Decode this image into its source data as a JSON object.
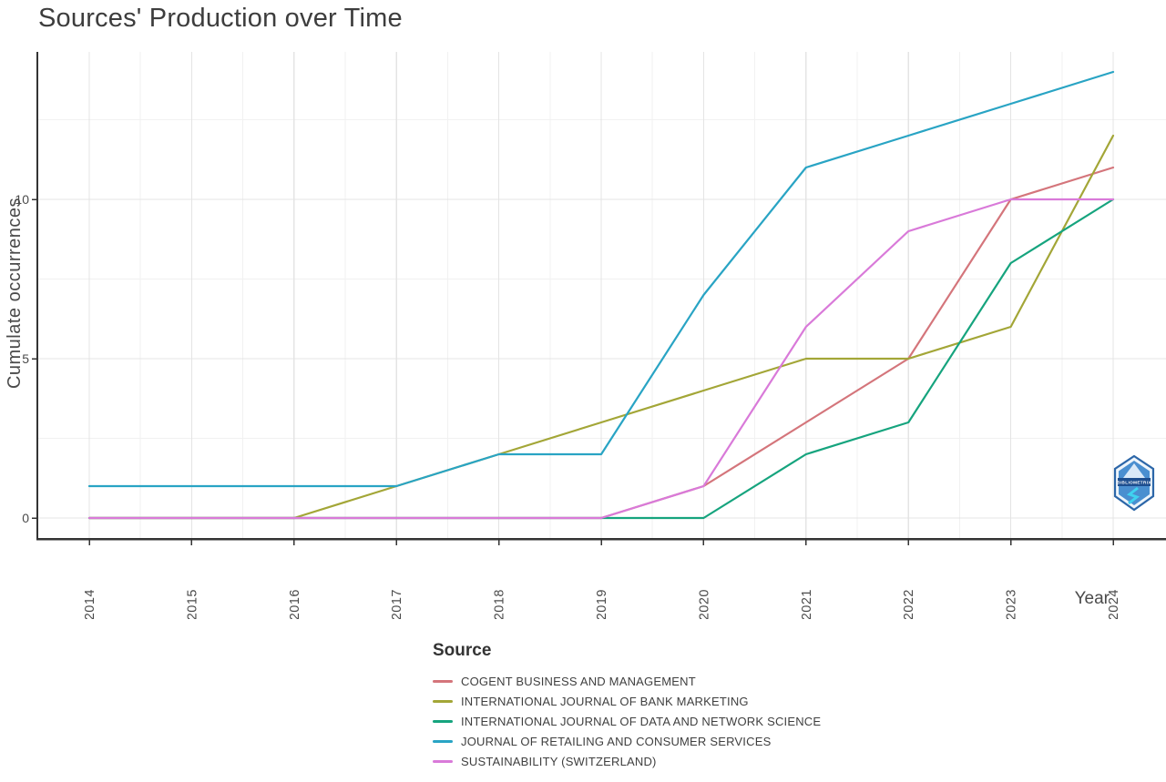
{
  "title": "Sources' Production over Time",
  "y_axis": {
    "label": "Cumulate occurrences",
    "major_ticks": [
      0,
      5,
      10
    ]
  },
  "x_axis": {
    "label": "Year",
    "ticks": [
      2014,
      2015,
      2016,
      2017,
      2018,
      2019,
      2020,
      2021,
      2022,
      2023,
      2024
    ]
  },
  "legend": {
    "title": "Source"
  },
  "logo": {
    "text": "BIBLIOMETRIX"
  },
  "colors": {
    "axis": "#333333",
    "tick_label": "#4a4a4a",
    "grid_major": "#e4e4e4",
    "grid_minor": "#f1f1f1"
  },
  "chart_data": {
    "type": "line",
    "title": "Sources' Production over Time",
    "xlabel": "Year",
    "ylabel": "Cumulate occurrences",
    "x": [
      2014,
      2015,
      2016,
      2017,
      2018,
      2019,
      2020,
      2021,
      2022,
      2023,
      2024
    ],
    "ylim": [
      0,
      14.6
    ],
    "y_major_ticks": [
      0,
      5,
      10
    ],
    "y_minor_ticks": [
      2.5,
      7.5,
      12.5
    ],
    "grid": true,
    "legend_position": "bottom-left",
    "series": [
      {
        "name": "COGENT BUSINESS AND MANAGEMENT",
        "color": "#d4757b",
        "values": [
          0,
          0,
          0,
          0,
          0,
          0,
          1,
          3,
          5,
          10,
          11
        ]
      },
      {
        "name": "INTERNATIONAL JOURNAL OF BANK MARKETING",
        "color": "#a3a637",
        "values": [
          0,
          0,
          0,
          1,
          2,
          3,
          4,
          5,
          5,
          6,
          12
        ]
      },
      {
        "name": "INTERNATIONAL JOURNAL OF DATA AND NETWORK SCIENCE",
        "color": "#16a47e",
        "values": [
          0,
          0,
          0,
          0,
          0,
          0,
          0,
          2,
          3,
          8,
          10
        ]
      },
      {
        "name": "JOURNAL OF RETAILING AND CONSUMER SERVICES",
        "color": "#29a4c4",
        "values": [
          1,
          1,
          1,
          1,
          2,
          2,
          7,
          11,
          12,
          13,
          14
        ]
      },
      {
        "name": "SUSTAINABILITY (SWITZERLAND)",
        "color": "#d97ad9",
        "values": [
          0,
          0,
          0,
          0,
          0,
          0,
          1,
          6,
          9,
          10,
          10
        ]
      }
    ]
  }
}
